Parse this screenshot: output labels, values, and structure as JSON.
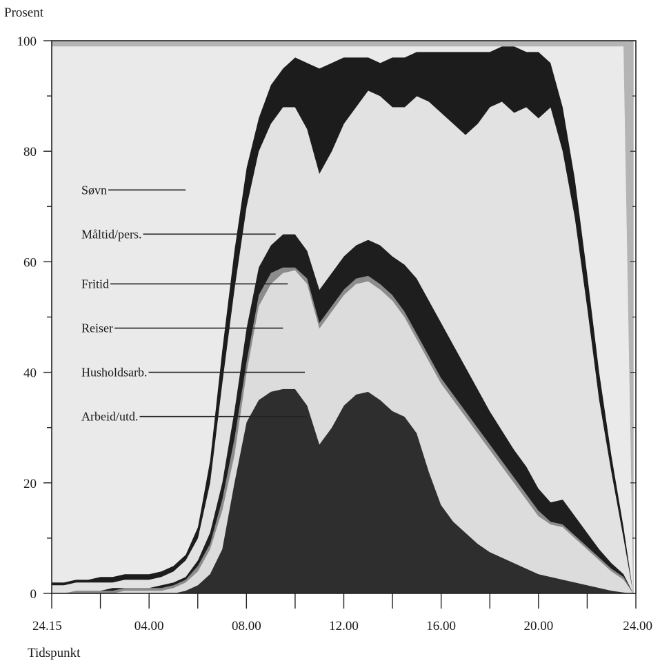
{
  "chart_data": {
    "type": "area",
    "stacked": true,
    "ylabel": "Prosent",
    "xlabel": "Tidspunkt",
    "ylim": [
      0,
      100
    ],
    "xlim_hours": [
      0,
      24
    ],
    "x_ticks": [
      {
        "hour": 0,
        "label": "24.15"
      },
      {
        "hour": 4,
        "label": "04.00"
      },
      {
        "hour": 8,
        "label": "08.00"
      },
      {
        "hour": 12,
        "label": "12.00"
      },
      {
        "hour": 16,
        "label": "16.00"
      },
      {
        "hour": 20,
        "label": "20.00"
      },
      {
        "hour": 24,
        "label": "24.00"
      }
    ],
    "y_ticks": [
      0,
      20,
      40,
      60,
      80,
      100
    ],
    "x_hours": [
      0,
      0.5,
      1,
      1.5,
      2,
      2.5,
      3,
      3.5,
      4,
      4.5,
      5,
      5.5,
      6,
      6.5,
      7,
      7.5,
      8,
      8.5,
      9,
      9.5,
      10,
      10.5,
      11,
      11.5,
      12,
      12.5,
      13,
      13.5,
      14,
      14.5,
      15,
      15.5,
      16,
      16.5,
      17,
      17.5,
      18,
      18.5,
      19,
      19.5,
      20,
      20.5,
      21,
      21.5,
      22,
      22.5,
      23,
      23.5,
      23.9
    ],
    "series": [
      {
        "name": "Arbeid/utd.",
        "color": "#2e2e2e",
        "cumulative": [
          0,
          0,
          0,
          0,
          0,
          0,
          0,
          0,
          0,
          0,
          0,
          0.5,
          1.5,
          3.5,
          8,
          20,
          31,
          35,
          36.5,
          37,
          37,
          34,
          27,
          30,
          34,
          36,
          36.5,
          35,
          33,
          32,
          29,
          22,
          16,
          13,
          11,
          9,
          7.5,
          6.5,
          5.5,
          4.5,
          3.5,
          3,
          2.5,
          2,
          1.5,
          1,
          0.5,
          0.2,
          0
        ]
      },
      {
        "name": "Husholdsarb.",
        "color": "#dcdcdc",
        "cumulative": [
          0,
          0,
          0,
          0,
          0,
          0,
          0.5,
          0.5,
          0.5,
          0.5,
          1,
          2,
          4,
          8,
          15,
          25,
          40,
          52,
          56,
          58,
          58.5,
          56,
          48,
          51,
          54,
          56,
          56.5,
          55,
          53,
          50,
          46,
          42,
          38,
          35,
          32,
          29,
          26,
          23,
          20,
          17,
          14,
          12.5,
          12,
          10,
          8,
          6,
          4,
          2.5,
          0
        ]
      },
      {
        "name": "Reiser",
        "color": "#8c8c8c",
        "cumulative": [
          0,
          0,
          0.5,
          0.5,
          0.5,
          0.5,
          1,
          1,
          1,
          1,
          1.5,
          2.5,
          5,
          9,
          17,
          28,
          42,
          54,
          58,
          59,
          59,
          57,
          49,
          52,
          55,
          57,
          57.5,
          56,
          54,
          51,
          47,
          43,
          39,
          36,
          33,
          30,
          27,
          24,
          21,
          18,
          15,
          13,
          12.5,
          10.5,
          8.5,
          6.5,
          4.5,
          3,
          0
        ]
      },
      {
        "name": "Fritid",
        "color": "#1e1e1e",
        "cumulative": [
          0,
          0,
          0.5,
          0.5,
          0.5,
          1,
          1,
          1,
          1,
          1.5,
          2,
          3,
          6,
          11,
          20,
          33,
          48,
          59,
          63,
          65,
          65,
          62,
          55,
          58,
          61,
          63,
          64,
          63,
          61,
          59.5,
          57,
          53,
          49,
          45,
          41,
          37,
          33,
          29.5,
          26,
          23,
          19,
          16.5,
          17,
          14,
          11,
          8,
          5.5,
          3.5,
          0
        ]
      },
      {
        "name": "Måltid/pers.",
        "color": "#e2e2e2",
        "cumulative": [
          1.5,
          1.5,
          2,
          2,
          2,
          2,
          2.5,
          2.5,
          2.5,
          3,
          4,
          6,
          10,
          20,
          38,
          55,
          70,
          80,
          85,
          88,
          88,
          84,
          76,
          80,
          85,
          88,
          91,
          90,
          88,
          88,
          90,
          89,
          87,
          85,
          83,
          85,
          88,
          89,
          87,
          88,
          86,
          88,
          80,
          68,
          52,
          35,
          22,
          10,
          0
        ]
      },
      {
        "name": "",
        "color": "#1c1c1c",
        "cumulative": [
          2,
          2,
          2.5,
          2.5,
          3,
          3,
          3.5,
          3.5,
          3.5,
          4,
          5,
          7,
          12,
          24,
          44,
          62,
          77,
          86,
          92,
          95,
          97,
          96,
          95,
          96,
          97,
          97,
          97,
          96,
          97,
          97,
          98,
          98,
          98,
          98,
          98,
          98,
          98,
          99,
          99,
          98,
          98,
          96,
          88,
          75,
          58,
          40,
          25,
          12,
          0
        ]
      },
      {
        "name": "Søvn",
        "color": "#eaeaea",
        "cumulative": [
          99,
          99,
          99,
          99,
          99,
          99,
          99,
          99,
          99,
          99,
          99,
          99,
          99,
          99,
          99,
          99,
          99,
          99,
          99,
          99,
          99,
          99,
          99,
          99,
          99,
          99,
          99,
          99,
          99,
          99,
          99,
          99,
          99,
          99,
          99,
          99,
          99,
          99,
          99,
          99,
          99,
          99,
          99,
          99,
          99,
          99,
          99,
          99,
          0
        ]
      },
      {
        "name": "",
        "color": "#b4b4b4",
        "cumulative": [
          100,
          100,
          100,
          100,
          100,
          100,
          100,
          100,
          100,
          100,
          100,
          100,
          100,
          100,
          100,
          100,
          100,
          100,
          100,
          100,
          100,
          100,
          100,
          100,
          100,
          100,
          100,
          100,
          100,
          100,
          100,
          100,
          100,
          100,
          100,
          100,
          100,
          100,
          100,
          100,
          100,
          100,
          100,
          100,
          100,
          100,
          100,
          100,
          100
        ]
      }
    ],
    "legend": [
      {
        "label": "Søvn",
        "hour": 5.5,
        "value": 73
      },
      {
        "label": "Måltid/pers.",
        "hour": 9.2,
        "value": 65
      },
      {
        "label": "Fritid",
        "hour": 9.7,
        "value": 56
      },
      {
        "label": "Reiser",
        "hour": 9.5,
        "value": 48
      },
      {
        "label": "Husholdsarb.",
        "hour": 10.4,
        "value": 40
      },
      {
        "label": "Arbeid/utd.",
        "hour": 10.5,
        "value": 32
      }
    ]
  }
}
